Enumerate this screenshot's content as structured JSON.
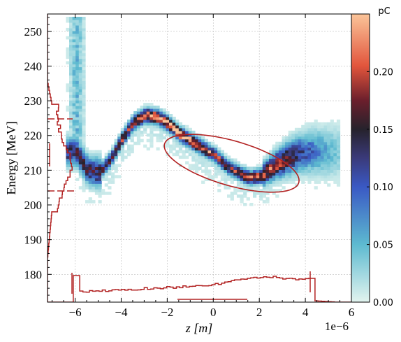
{
  "chart_data": {
    "type": "heatmap",
    "title": "",
    "xlabel": "z [m]",
    "ylabel": "Energy [MeV]",
    "x_offset_label": "1e−6",
    "xlim": [
      -7.2,
      6.0
    ],
    "ylim": [
      172,
      255
    ],
    "x_ticks": [
      -6,
      -4,
      -2,
      0,
      2,
      4,
      6
    ],
    "x_tick_labels": [
      "−6",
      "−4",
      "−2",
      "0",
      "2",
      "4",
      "6"
    ],
    "y_ticks": [
      180,
      190,
      200,
      210,
      220,
      230,
      240,
      250
    ],
    "y_tick_labels": [
      "180",
      "190",
      "200",
      "210",
      "220",
      "230",
      "240",
      "250"
    ],
    "grid": true,
    "colorbar": {
      "label": "pC",
      "range": [
        0.0,
        0.25
      ],
      "ticks": [
        0.0,
        0.05,
        0.1,
        0.15,
        0.2
      ],
      "tick_labels": [
        "0.00",
        "0.05",
        "0.10",
        "0.15",
        "0.20"
      ],
      "colormap": "icefire"
    },
    "density_ridge": {
      "description_points_z_um": [
        -6.0,
        -5.5,
        -5.0,
        -4.5,
        -4.0,
        -3.5,
        -3.0,
        -2.5,
        -2.0,
        -1.5,
        -1.0,
        -0.5,
        0.0,
        0.5,
        1.0,
        1.5,
        2.0,
        2.5,
        3.0,
        3.5,
        4.0
      ],
      "energy_MeV": [
        215,
        209.5,
        209,
        213,
        219,
        223.5,
        225.5,
        225,
        223,
        220,
        218,
        216,
        214,
        211,
        209,
        207.5,
        208,
        210.5,
        212.5,
        214,
        215
      ]
    },
    "ellipse": {
      "center_z_um": 0.8,
      "center_energy_MeV": 212,
      "color": "#b22222"
    },
    "current_profile_color": "#b22222",
    "energy_profile_color": "#b22222"
  }
}
